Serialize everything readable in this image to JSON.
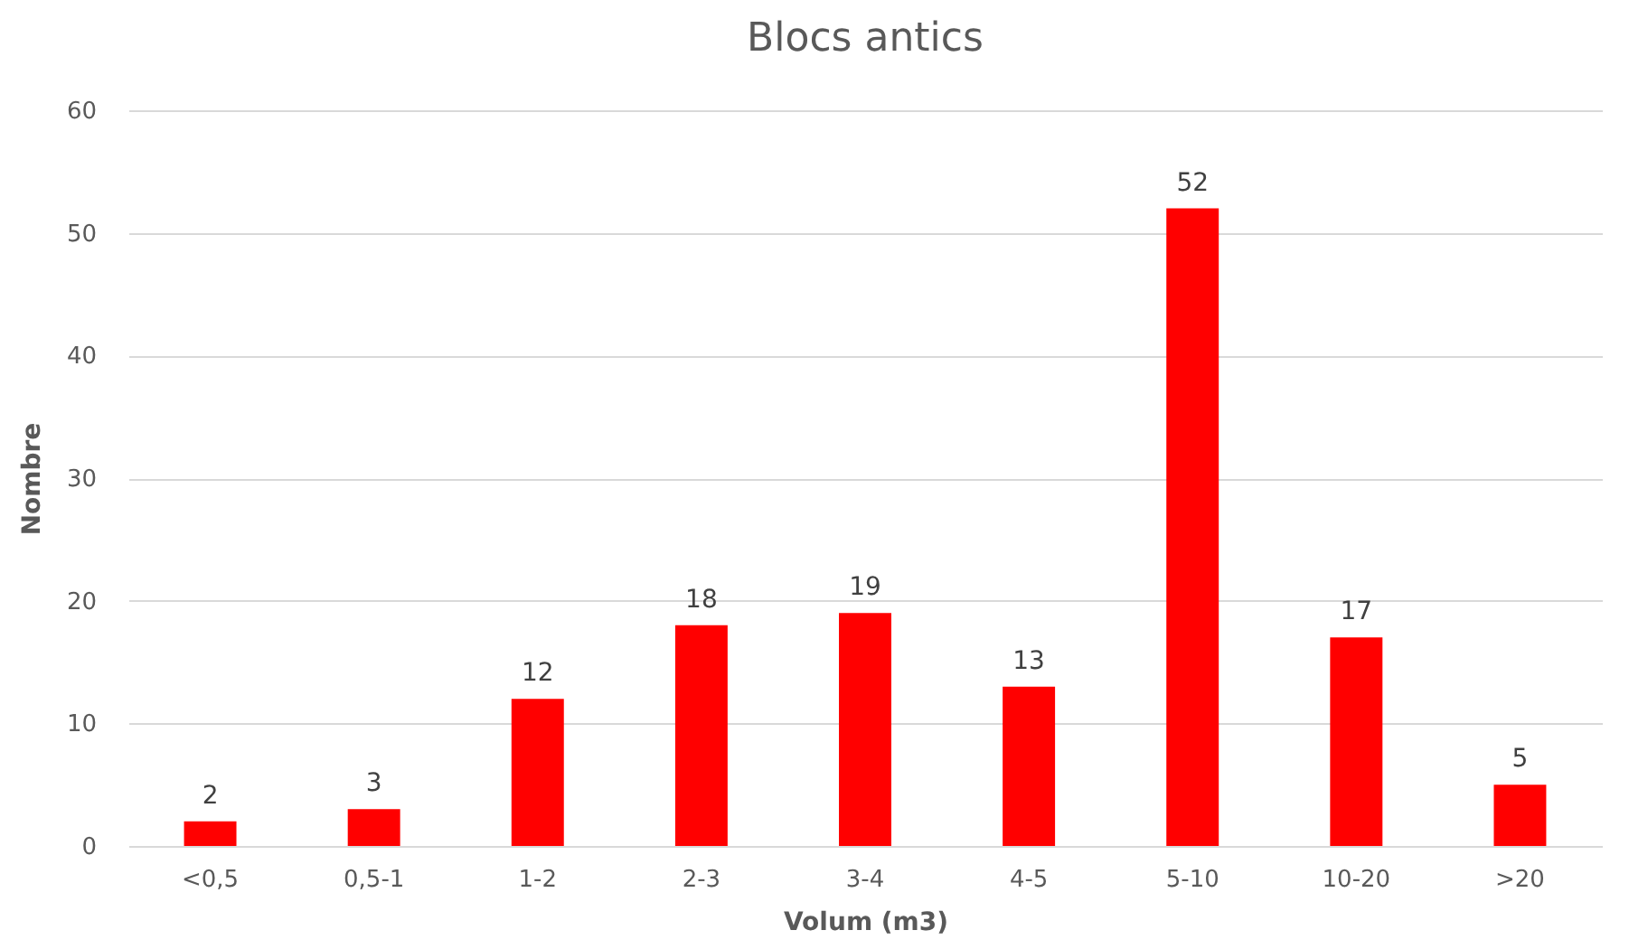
{
  "chart_data": {
    "type": "bar",
    "title": "Blocs antics",
    "xlabel": "Volum (m3)",
    "ylabel": "Nombre",
    "categories": [
      "<0,5",
      "0,5-1",
      "1-2",
      "2-3",
      "3-4",
      "4-5",
      "5-10",
      "10-20",
      ">20"
    ],
    "values": [
      2,
      3,
      12,
      18,
      19,
      13,
      52,
      17,
      5
    ],
    "color": "#ff0000",
    "ylim": [
      0,
      60
    ],
    "yticks": [
      0,
      10,
      20,
      30,
      40,
      50,
      60
    ],
    "grid": "y",
    "data_labels": true
  }
}
